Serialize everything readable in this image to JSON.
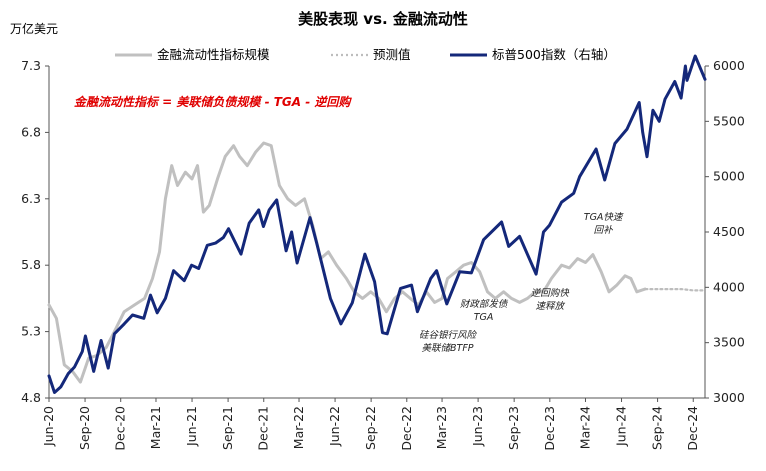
{
  "chart_data": {
    "type": "line",
    "title": "美股表现 vs. 金融流动性",
    "left_unit": "万亿美元",
    "note": "金融流动性指标 = 美联储负债规模 - TGA - 逆回购",
    "left_axis": {
      "range": [
        4.8,
        7.3
      ],
      "ticks": [
        "4.8",
        "5.3",
        "5.8",
        "6.3",
        "6.8",
        "7.3"
      ]
    },
    "right_axis": {
      "range": [
        3000,
        6000
      ],
      "ticks": [
        "3000",
        "3500",
        "4000",
        "4500",
        "5000",
        "5500",
        "6000"
      ]
    },
    "x_ticks": [
      "Jun-20",
      "Sep-20",
      "Dec-20",
      "Mar-21",
      "Jun-21",
      "Sep-21",
      "Dec-21",
      "Mar-22",
      "Jun-22",
      "Sep-22",
      "Dec-22",
      "Mar-23",
      "Jun-23",
      "Sep-23",
      "Dec-23",
      "Mar-24",
      "Jun-24",
      "Sep-24",
      "Dec-24"
    ],
    "x_range": [
      "2020-06-01",
      "2024-12-31"
    ],
    "legend_placement": "top",
    "grid": false,
    "series": [
      {
        "name": "金融流动性指标规模",
        "axis": "left",
        "color": "#c0c0c0",
        "style": "solid",
        "points": [
          [
            "2020-06-01",
            5.5
          ],
          [
            "2020-06-20",
            5.4
          ],
          [
            "2020-07-10",
            5.05
          ],
          [
            "2020-07-31",
            5.0
          ],
          [
            "2020-08-20",
            4.92
          ],
          [
            "2020-09-10",
            5.1
          ],
          [
            "2020-10-01",
            5.12
          ],
          [
            "2020-10-25",
            5.18
          ],
          [
            "2020-11-15",
            5.3
          ],
          [
            "2020-12-10",
            5.45
          ],
          [
            "2021-01-05",
            5.5
          ],
          [
            "2021-01-31",
            5.55
          ],
          [
            "2021-02-20",
            5.7
          ],
          [
            "2021-03-10",
            5.9
          ],
          [
            "2021-03-25",
            6.3
          ],
          [
            "2021-04-10",
            6.55
          ],
          [
            "2021-04-25",
            6.4
          ],
          [
            "2021-05-15",
            6.5
          ],
          [
            "2021-06-01",
            6.45
          ],
          [
            "2021-06-15",
            6.55
          ],
          [
            "2021-06-30",
            6.2
          ],
          [
            "2021-07-15",
            6.25
          ],
          [
            "2021-08-05",
            6.45
          ],
          [
            "2021-08-25",
            6.62
          ],
          [
            "2021-09-15",
            6.7
          ],
          [
            "2021-09-30",
            6.62
          ],
          [
            "2021-10-20",
            6.55
          ],
          [
            "2021-11-10",
            6.65
          ],
          [
            "2021-12-01",
            6.72
          ],
          [
            "2021-12-20",
            6.7
          ],
          [
            "2022-01-10",
            6.4
          ],
          [
            "2022-01-31",
            6.3
          ],
          [
            "2022-02-20",
            6.25
          ],
          [
            "2022-03-15",
            6.3
          ],
          [
            "2022-04-05",
            6.1
          ],
          [
            "2022-04-25",
            5.85
          ],
          [
            "2022-05-15",
            5.9
          ],
          [
            "2022-06-05",
            5.8
          ],
          [
            "2022-06-30",
            5.7
          ],
          [
            "2022-07-20",
            5.6
          ],
          [
            "2022-08-10",
            5.55
          ],
          [
            "2022-08-31",
            5.6
          ],
          [
            "2022-09-20",
            5.55
          ],
          [
            "2022-10-10",
            5.45
          ],
          [
            "2022-10-31",
            5.55
          ],
          [
            "2022-11-20",
            5.6
          ],
          [
            "2022-12-10",
            5.55
          ],
          [
            "2022-12-31",
            5.5
          ],
          [
            "2023-01-20",
            5.6
          ],
          [
            "2023-02-10",
            5.52
          ],
          [
            "2023-03-01",
            5.55
          ],
          [
            "2023-03-15",
            5.7
          ],
          [
            "2023-04-05",
            5.75
          ],
          [
            "2023-04-25",
            5.8
          ],
          [
            "2023-05-15",
            5.82
          ],
          [
            "2023-06-05",
            5.75
          ],
          [
            "2023-06-25",
            5.6
          ],
          [
            "2023-07-15",
            5.55
          ],
          [
            "2023-08-05",
            5.6
          ],
          [
            "2023-08-25",
            5.55
          ],
          [
            "2023-09-15",
            5.52
          ],
          [
            "2023-10-05",
            5.55
          ],
          [
            "2023-10-25",
            5.6
          ],
          [
            "2023-11-15",
            5.6
          ],
          [
            "2023-12-05",
            5.7
          ],
          [
            "2023-12-31",
            5.8
          ],
          [
            "2024-01-20",
            5.78
          ],
          [
            "2024-02-10",
            5.85
          ],
          [
            "2024-03-01",
            5.82
          ],
          [
            "2024-03-20",
            5.88
          ],
          [
            "2024-04-10",
            5.75
          ],
          [
            "2024-04-30",
            5.6
          ],
          [
            "2024-05-20",
            5.65
          ],
          [
            "2024-06-10",
            5.72
          ],
          [
            "2024-06-25",
            5.7
          ],
          [
            "2024-07-10",
            5.6
          ],
          [
            "2024-07-31",
            5.62
          ]
        ]
      },
      {
        "name": "预测值",
        "axis": "left",
        "color": "#bdbdbd",
        "style": "dotted",
        "points": [
          [
            "2024-08-01",
            5.62
          ],
          [
            "2024-09-01",
            5.62
          ],
          [
            "2024-10-01",
            5.62
          ],
          [
            "2024-11-01",
            5.62
          ],
          [
            "2024-12-01",
            5.61
          ],
          [
            "2024-12-31",
            5.61
          ]
        ]
      },
      {
        "name": "标普500指数（右轴）",
        "axis": "right",
        "color": "#14287a",
        "style": "solid",
        "points": [
          [
            "2020-06-01",
            3200
          ],
          [
            "2020-06-15",
            3050
          ],
          [
            "2020-07-01",
            3100
          ],
          [
            "2020-07-20",
            3220
          ],
          [
            "2020-08-05",
            3280
          ],
          [
            "2020-08-25",
            3420
          ],
          [
            "2020-09-02",
            3560
          ],
          [
            "2020-09-23",
            3240
          ],
          [
            "2020-10-12",
            3520
          ],
          [
            "2020-10-30",
            3270
          ],
          [
            "2020-11-15",
            3580
          ],
          [
            "2020-12-10",
            3670
          ],
          [
            "2020-12-31",
            3750
          ],
          [
            "2021-01-29",
            3720
          ],
          [
            "2021-02-15",
            3930
          ],
          [
            "2021-03-04",
            3770
          ],
          [
            "2021-03-25",
            3900
          ],
          [
            "2021-04-15",
            4150
          ],
          [
            "2021-05-12",
            4060
          ],
          [
            "2021-05-31",
            4200
          ],
          [
            "2021-06-18",
            4170
          ],
          [
            "2021-07-10",
            4380
          ],
          [
            "2021-07-31",
            4400
          ],
          [
            "2021-08-20",
            4450
          ],
          [
            "2021-09-02",
            4530
          ],
          [
            "2021-10-04",
            4300
          ],
          [
            "2021-10-25",
            4580
          ],
          [
            "2021-11-18",
            4700
          ],
          [
            "2021-11-30",
            4550
          ],
          [
            "2021-12-15",
            4700
          ],
          [
            "2022-01-03",
            4790
          ],
          [
            "2022-01-27",
            4330
          ],
          [
            "2022-02-10",
            4500
          ],
          [
            "2022-02-24",
            4220
          ],
          [
            "2022-03-29",
            4630
          ],
          [
            "2022-04-15",
            4400
          ],
          [
            "2022-05-20",
            3900
          ],
          [
            "2022-06-16",
            3670
          ],
          [
            "2022-07-15",
            3860
          ],
          [
            "2022-08-16",
            4300
          ],
          [
            "2022-09-10",
            4050
          ],
          [
            "2022-09-30",
            3590
          ],
          [
            "2022-10-12",
            3580
          ],
          [
            "2022-11-15",
            3990
          ],
          [
            "2022-12-13",
            4020
          ],
          [
            "2022-12-28",
            3780
          ],
          [
            "2023-01-31",
            4080
          ],
          [
            "2023-02-15",
            4150
          ],
          [
            "2023-03-13",
            3850
          ],
          [
            "2023-04-15",
            4140
          ],
          [
            "2023-05-15",
            4130
          ],
          [
            "2023-06-15",
            4430
          ],
          [
            "2023-07-31",
            4590
          ],
          [
            "2023-08-18",
            4370
          ],
          [
            "2023-09-15",
            4460
          ],
          [
            "2023-10-27",
            4120
          ],
          [
            "2023-11-15",
            4500
          ],
          [
            "2023-11-30",
            4560
          ],
          [
            "2023-12-31",
            4770
          ],
          [
            "2024-01-31",
            4850
          ],
          [
            "2024-02-15",
            5000
          ],
          [
            "2024-03-28",
            5250
          ],
          [
            "2024-04-19",
            4970
          ],
          [
            "2024-05-15",
            5300
          ],
          [
            "2024-06-15",
            5430
          ],
          [
            "2024-07-16",
            5670
          ],
          [
            "2024-07-25",
            5400
          ],
          [
            "2024-08-05",
            5180
          ],
          [
            "2024-08-20",
            5600
          ],
          [
            "2024-09-05",
            5500
          ],
          [
            "2024-09-20",
            5700
          ],
          [
            "2024-10-15",
            5860
          ],
          [
            "2024-10-31",
            5710
          ],
          [
            "2024-11-11",
            6000
          ],
          [
            "2024-11-15",
            5870
          ],
          [
            "2024-12-06",
            6090
          ],
          [
            "2024-12-31",
            5880
          ]
        ]
      }
    ],
    "annotations": [
      {
        "lines": [
          "硅谷银行风险",
          "美联储BTFP"
        ],
        "date": "2023-03-15"
      },
      {
        "lines": [
          "财政部发债",
          "TGA"
        ],
        "date": "2023-06-15"
      },
      {
        "lines": [
          "逆回购快",
          "速释放"
        ],
        "date": "2023-12-01"
      },
      {
        "lines": [
          "TGA快速",
          "回补"
        ],
        "date": "2024-04-15"
      }
    ]
  }
}
